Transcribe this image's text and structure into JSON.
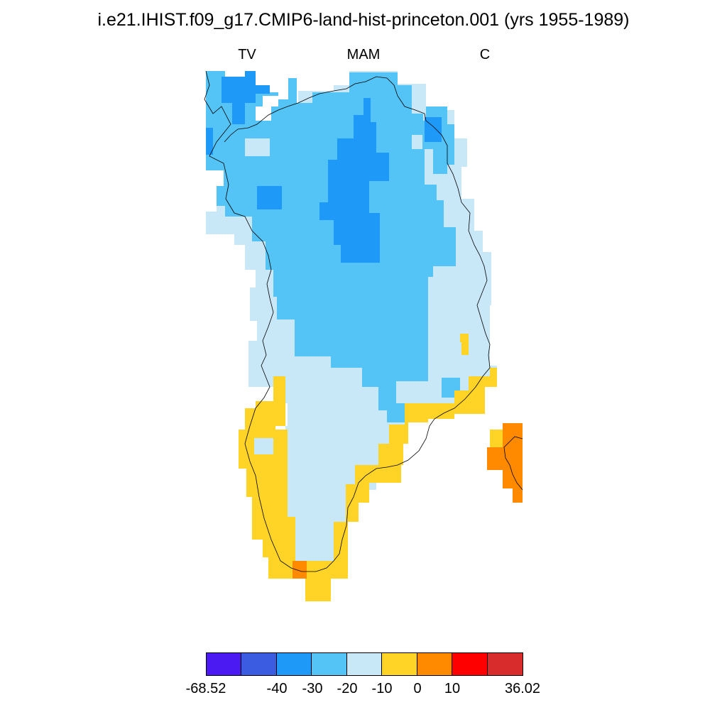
{
  "title": "i.e21.IHIST.f09_g17.CMIP6-land-hist-princeton.001 (yrs 1955-1989)",
  "subtitles": {
    "left": "TV",
    "center": "MAM",
    "right": "C"
  },
  "colorbar": {
    "colors": [
      "#4b1af2",
      "#3b5be0",
      "#1f99f7",
      "#54c3f5",
      "#c9e8f7",
      "#ffd426",
      "#ff8a00",
      "#ff0000",
      "#d82b2b"
    ],
    "tick_labels": [
      "-68.52",
      "-40",
      "-30",
      "-20",
      "-10",
      "0",
      "10",
      "36.02"
    ]
  },
  "map_colors": {
    "c_dark": "#1f99f7",
    "c_mid": "#54c3f5",
    "c_light": "#c9e8f7",
    "c_yellow": "#ffd426",
    "c_orange": "#ff8a00",
    "coast": "#000000"
  }
}
